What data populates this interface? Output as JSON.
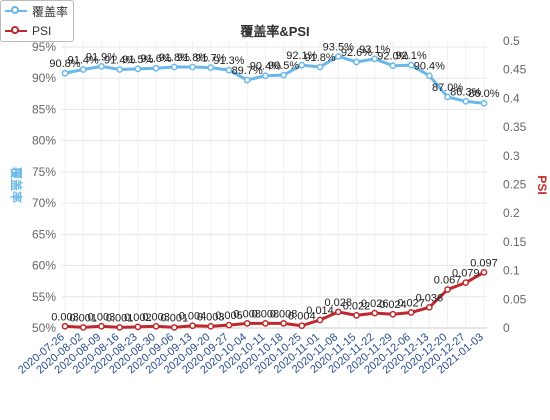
{
  "legend": {
    "coverage_label": "覆盖率",
    "psi_label": "PSI"
  },
  "colors": {
    "coverage": "#6ab8ea",
    "psi": "#c0282d",
    "grid": "#e6e6e6",
    "axis_text": "#666666",
    "date_text": "#2a4d8f"
  },
  "chart_data": {
    "type": "line",
    "title": "覆盖率&PSI",
    "x": [
      "2020-07-26",
      "2020-08-02",
      "2020-08-09",
      "2020-08-16",
      "2020-08-23",
      "2020-08-30",
      "2020-09-06",
      "2020-09-13",
      "2020-09-20",
      "2020-09-27",
      "2020-10-04",
      "2020-10-11",
      "2020-10-18",
      "2020-10-25",
      "2020-11-01",
      "2020-11-08",
      "2020-11-15",
      "2020-11-22",
      "2020-11-29",
      "2020-12-06",
      "2020-12-13",
      "2020-12-20",
      "2020-12-27",
      "2021-01-03"
    ],
    "x_tick_labels": [
      "2020-07-26",
      "2020-08-02",
      "2020-08-09",
      "2020-08-16",
      "2020-08-23",
      "2020-08-30",
      "2020-09-06",
      "2020-09-13",
      "2020-09-20",
      "2020-09-27",
      "2020-10-04",
      "2020-10-11",
      "2020-10-18",
      "2020-10-25",
      "2020-11-01",
      "2020-11-08",
      "2020-11-15",
      "2020-11-22",
      "2020-11-29",
      "2020-12-06",
      "2020-12-13",
      "2020-12-20",
      "2020-12-27",
      "2021-01-03"
    ],
    "left_axis": {
      "label": "覆盖率",
      "range": [
        50,
        95
      ],
      "ticks": [
        "50%",
        "55%",
        "60%",
        "65%",
        "70%",
        "75%",
        "80%",
        "85%",
        "90%",
        "95%"
      ],
      "tick_values": [
        50,
        55,
        60,
        65,
        70,
        75,
        80,
        85,
        90,
        95
      ]
    },
    "right_axis": {
      "label": "PSI",
      "range": [
        0,
        0.5
      ],
      "ticks": [
        "0",
        "0.05",
        "0.1",
        "0.15",
        "0.2",
        "0.25",
        "0.3",
        "0.35",
        "0.4",
        "0.45",
        "0.5"
      ],
      "tick_values": [
        0,
        0.05,
        0.1,
        0.15,
        0.2,
        0.25,
        0.3,
        0.35,
        0.4,
        0.45,
        0.5
      ]
    },
    "grid": true,
    "legend_position": "top-left",
    "series": [
      {
        "name": "覆盖率",
        "axis": "left",
        "values": [
          90.8,
          91.4,
          91.9,
          91.4,
          91.5,
          91.6,
          91.8,
          91.8,
          91.7,
          91.3,
          89.7,
          90.4,
          90.5,
          92.1,
          91.8,
          93.5,
          92.6,
          93.1,
          92.0,
          92.1,
          90.4,
          87.0,
          86.3,
          86.0
        ],
        "labels": [
          "90.8%",
          "91.4%",
          "91.9%",
          "91.4%",
          "91.5%",
          "91.6%",
          "91.8%",
          "91.8%",
          "91.7%",
          "91.3%",
          "89.7%",
          "90.4%",
          "90.5%",
          "92.1%",
          "91.8%",
          "93.5%",
          "92.6%",
          "93.1%",
          "92.0%",
          "92.1%",
          "90.4%",
          "87.0%",
          "86.3%",
          "86.0%"
        ]
      },
      {
        "name": "PSI",
        "axis": "right",
        "values": [
          0.003,
          0.001,
          0.003,
          0.001,
          0.002,
          0.003,
          0.001,
          0.004,
          0.003,
          0.005,
          0.008,
          0.008,
          0.008,
          0.004,
          0.014,
          0.028,
          0.022,
          0.026,
          0.024,
          0.027,
          0.036,
          0.067,
          0.079,
          0.097
        ],
        "labels": [
          "0.003",
          "0.001",
          "0.003",
          "0.001",
          "0.002",
          "0.003",
          "0.001",
          "0.004",
          "0.003",
          "0.005",
          "0.008",
          "0.008",
          "0.008",
          "0.004",
          "0.014",
          "0.028",
          "0.022",
          "0.026",
          "0.024",
          "0.027",
          "0.036",
          "0.067",
          "0.079",
          "0.097"
        ]
      }
    ]
  }
}
